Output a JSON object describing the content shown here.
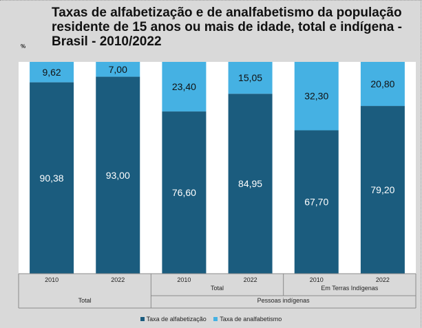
{
  "title": "Taxas de alfabetização e de analfabetismo da população residente de 15 anos ou mais de idade, total e indígena - Brasil - 2010/2022",
  "unit": "%",
  "colors": {
    "alfabetizacao": "#1b5c7e",
    "analfabetismo": "#45b1e3",
    "background": "#d9d9d9",
    "labels": "#ffffff",
    "gaps": "#ffffff"
  },
  "chart_data": {
    "type": "bar",
    "stacked": true,
    "categories": [
      "2010",
      "2022",
      "2010",
      "2022",
      "2010",
      "2022"
    ],
    "groups": [
      {
        "label": "Total",
        "level": 1,
        "span": [
          0,
          1
        ]
      },
      {
        "label": "Total",
        "level": 2,
        "span": [
          2,
          3
        ]
      },
      {
        "label": "Em Terras Indígenas",
        "level": 2,
        "span": [
          4,
          5
        ]
      },
      {
        "label": "Pessoas indígenas",
        "level": 1,
        "span": [
          2,
          5
        ]
      }
    ],
    "series": [
      {
        "name": "Taxa de alfabetização",
        "values": [
          90.38,
          93.0,
          76.6,
          84.95,
          67.7,
          79.2
        ],
        "labels": [
          "90,38",
          "93,00",
          "76,60",
          "84,95",
          "67,70",
          "79,20"
        ],
        "color": "#1b5c7e"
      },
      {
        "name": "Taxa de analfabetismo",
        "values": [
          9.62,
          7.0,
          23.4,
          15.05,
          32.3,
          20.8
        ],
        "labels": [
          "9,62",
          "7,00",
          "23,40",
          "15,05",
          "32,30",
          "20,80"
        ],
        "color": "#45b1e3"
      }
    ],
    "ylim": [
      0,
      100
    ],
    "grid": false,
    "legend": "bottom"
  }
}
